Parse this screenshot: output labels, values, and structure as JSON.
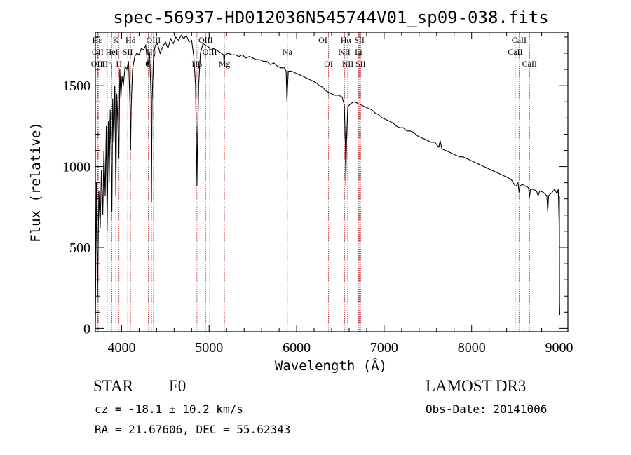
{
  "chart_data": {
    "type": "line",
    "title": "spec-56937-HD012036N545744V01_sp09-038.fits",
    "xlabel": "Wavelength (Å)",
    "ylabel": "Flux (relative)",
    "xlim": [
      3700,
      9100
    ],
    "ylim": [
      -20,
      1830
    ],
    "x_ticks": [
      4000,
      5000,
      6000,
      7000,
      8000,
      9000
    ],
    "y_ticks": [
      0,
      500,
      1000,
      1500
    ],
    "series": [
      {
        "name": "flux",
        "points": [
          [
            3700,
            30
          ],
          [
            3712,
            900
          ],
          [
            3725,
            200
          ],
          [
            3740,
            850
          ],
          [
            3755,
            620
          ],
          [
            3770,
            980
          ],
          [
            3785,
            700
          ],
          [
            3798,
            1100
          ],
          [
            3812,
            820
          ],
          [
            3825,
            1250
          ],
          [
            3835,
            600
          ],
          [
            3848,
            1280
          ],
          [
            3858,
            900
          ],
          [
            3870,
            1350
          ],
          [
            3880,
            1050
          ],
          [
            3889,
            720
          ],
          [
            3898,
            1420
          ],
          [
            3910,
            1150
          ],
          [
            3922,
            1500
          ],
          [
            3934,
            820
          ],
          [
            3945,
            1450
          ],
          [
            3958,
            1250
          ],
          [
            3968,
            1050
          ],
          [
            3980,
            1600
          ],
          [
            3992,
            1420
          ],
          [
            4005,
            1560
          ],
          [
            4020,
            1500
          ],
          [
            4040,
            1620
          ],
          [
            4060,
            1600
          ],
          [
            4080,
            1650
          ],
          [
            4095,
            1400
          ],
          [
            4102,
            1100
          ],
          [
            4110,
            1380
          ],
          [
            4125,
            1600
          ],
          [
            4150,
            1680
          ],
          [
            4175,
            1700
          ],
          [
            4200,
            1690
          ],
          [
            4225,
            1730
          ],
          [
            4250,
            1720
          ],
          [
            4275,
            1750
          ],
          [
            4300,
            1620
          ],
          [
            4320,
            1700
          ],
          [
            4335,
            1450
          ],
          [
            4341,
            780
          ],
          [
            4348,
            1400
          ],
          [
            4365,
            1690
          ],
          [
            4385,
            1750
          ],
          [
            4410,
            1760
          ],
          [
            4440,
            1700
          ],
          [
            4470,
            1740
          ],
          [
            4500,
            1770
          ],
          [
            4530,
            1730
          ],
          [
            4560,
            1790
          ],
          [
            4590,
            1760
          ],
          [
            4620,
            1800
          ],
          [
            4650,
            1780
          ],
          [
            4680,
            1810
          ],
          [
            4710,
            1790
          ],
          [
            4740,
            1810
          ],
          [
            4770,
            1770
          ],
          [
            4800,
            1780
          ],
          [
            4825,
            1680
          ],
          [
            4845,
            1500
          ],
          [
            4856,
            1100
          ],
          [
            4861,
            880
          ],
          [
            4866,
            1100
          ],
          [
            4880,
            1500
          ],
          [
            4900,
            1700
          ],
          [
            4930,
            1760
          ],
          [
            4960,
            1750
          ],
          [
            4990,
            1740
          ],
          [
            5020,
            1720
          ],
          [
            5050,
            1730
          ],
          [
            5080,
            1720
          ],
          [
            5110,
            1710
          ],
          [
            5140,
            1700
          ],
          [
            5165,
            1690
          ],
          [
            5172,
            1620
          ],
          [
            5180,
            1690
          ],
          [
            5220,
            1700
          ],
          [
            5260,
            1690
          ],
          [
            5300,
            1690
          ],
          [
            5340,
            1680
          ],
          [
            5380,
            1690
          ],
          [
            5420,
            1670
          ],
          [
            5460,
            1680
          ],
          [
            5500,
            1670
          ],
          [
            5540,
            1660
          ],
          [
            5580,
            1660
          ],
          [
            5620,
            1650
          ],
          [
            5660,
            1650
          ],
          [
            5700,
            1630
          ],
          [
            5740,
            1640
          ],
          [
            5780,
            1620
          ],
          [
            5820,
            1610
          ],
          [
            5860,
            1610
          ],
          [
            5880,
            1590
          ],
          [
            5890,
            1400
          ],
          [
            5896,
            1490
          ],
          [
            5905,
            1590
          ],
          [
            5940,
            1590
          ],
          [
            5980,
            1580
          ],
          [
            6020,
            1570
          ],
          [
            6060,
            1560
          ],
          [
            6100,
            1550
          ],
          [
            6140,
            1540
          ],
          [
            6180,
            1530
          ],
          [
            6220,
            1520
          ],
          [
            6260,
            1500
          ],
          [
            6300,
            1490
          ],
          [
            6330,
            1470
          ],
          [
            6360,
            1460
          ],
          [
            6400,
            1450
          ],
          [
            6440,
            1440
          ],
          [
            6480,
            1440
          ],
          [
            6520,
            1430
          ],
          [
            6545,
            1380
          ],
          [
            6556,
            1150
          ],
          [
            6563,
            880
          ],
          [
            6570,
            1150
          ],
          [
            6585,
            1370
          ],
          [
            6620,
            1390
          ],
          [
            6660,
            1400
          ],
          [
            6700,
            1390
          ],
          [
            6740,
            1380
          ],
          [
            6780,
            1370
          ],
          [
            6820,
            1360
          ],
          [
            6860,
            1350
          ],
          [
            6900,
            1330
          ],
          [
            6940,
            1320
          ],
          [
            6980,
            1300
          ],
          [
            7020,
            1290
          ],
          [
            7060,
            1280
          ],
          [
            7100,
            1270
          ],
          [
            7140,
            1250
          ],
          [
            7180,
            1240
          ],
          [
            7220,
            1240
          ],
          [
            7260,
            1220
          ],
          [
            7300,
            1220
          ],
          [
            7340,
            1210
          ],
          [
            7380,
            1190
          ],
          [
            7420,
            1180
          ],
          [
            7460,
            1170
          ],
          [
            7500,
            1160
          ],
          [
            7540,
            1150
          ],
          [
            7580,
            1150
          ],
          [
            7610,
            1130
          ],
          [
            7625,
            1120
          ],
          [
            7640,
            1160
          ],
          [
            7660,
            1110
          ],
          [
            7700,
            1100
          ],
          [
            7740,
            1090
          ],
          [
            7780,
            1080
          ],
          [
            7820,
            1070
          ],
          [
            7860,
            1060
          ],
          [
            7900,
            1060
          ],
          [
            7940,
            1050
          ],
          [
            7980,
            1040
          ],
          [
            8020,
            1030
          ],
          [
            8060,
            1020
          ],
          [
            8100,
            1010
          ],
          [
            8140,
            1000
          ],
          [
            8180,
            990
          ],
          [
            8220,
            980
          ],
          [
            8260,
            970
          ],
          [
            8300,
            960
          ],
          [
            8340,
            950
          ],
          [
            8380,
            940
          ],
          [
            8420,
            930
          ],
          [
            8460,
            915
          ],
          [
            8498,
            880
          ],
          [
            8510,
            880
          ],
          [
            8530,
            900
          ],
          [
            8542,
            840
          ],
          [
            8552,
            880
          ],
          [
            8580,
            890
          ],
          [
            8610,
            880
          ],
          [
            8650,
            870
          ],
          [
            8662,
            810
          ],
          [
            8672,
            860
          ],
          [
            8700,
            860
          ],
          [
            8740,
            850
          ],
          [
            8760,
            820
          ],
          [
            8780,
            850
          ],
          [
            8820,
            840
          ],
          [
            8860,
            820
          ],
          [
            8870,
            720
          ],
          [
            8880,
            820
          ],
          [
            8920,
            840
          ],
          [
            8950,
            860
          ],
          [
            8975,
            830
          ],
          [
            8990,
            860
          ],
          [
            9000,
            650
          ],
          [
            9003,
            820
          ],
          [
            9005,
            160
          ],
          [
            9008,
            80
          ]
        ]
      }
    ],
    "line_markers": [
      {
        "label": "Hε",
        "x": 3720,
        "row": 1
      },
      {
        "label": "OII",
        "x": 3727,
        "row": 2
      },
      {
        "label": "OIII",
        "x": 3733,
        "row": 3
      },
      {
        "label": "K",
        "x": 3934,
        "row": 1
      },
      {
        "label": "HeI",
        "x": 3889,
        "row": 2
      },
      {
        "label": "Hη",
        "x": 3835,
        "row": 3
      },
      {
        "label": "H",
        "x": 3970,
        "row": 3
      },
      {
        "label": "Hδ",
        "x": 4102,
        "row": 1
      },
      {
        "label": "SII",
        "x": 4070,
        "row": 2
      },
      {
        "label": "OIII",
        "x": 4364,
        "row": 1
      },
      {
        "label": "Hγ",
        "x": 4341,
        "row": 2
      },
      {
        "label": "G",
        "x": 4305,
        "row": 3
      },
      {
        "label": "Hβ",
        "x": 4861,
        "row": 3
      },
      {
        "label": "OIII",
        "x": 4960,
        "row": 1
      },
      {
        "label": "OIII",
        "x": 5007,
        "row": 2
      },
      {
        "label": "Mg",
        "x": 5175,
        "row": 3
      },
      {
        "label": "Na",
        "x": 5894,
        "row": 2
      },
      {
        "label": "OI",
        "x": 6300,
        "row": 1
      },
      {
        "label": "OI",
        "x": 6364,
        "row": 3
      },
      {
        "label": "Hα",
        "x": 6563,
        "row": 1
      },
      {
        "label": "NII",
        "x": 6548,
        "row": 2
      },
      {
        "label": "NII",
        "x": 6584,
        "row": 3
      },
      {
        "label": "SII",
        "x": 6717,
        "row": 1
      },
      {
        "label": "Li",
        "x": 6708,
        "row": 2
      },
      {
        "label": "SII",
        "x": 6731,
        "row": 3
      },
      {
        "label": "CaII",
        "x": 8542,
        "row": 1
      },
      {
        "label": "CaII",
        "x": 8498,
        "row": 2
      },
      {
        "label": "CaII",
        "x": 8662,
        "row": 3
      }
    ]
  },
  "info": {
    "object_class": "STAR",
    "subclass": "F0",
    "cz": "cz = -18.1 ± 10.2 km/s",
    "radec": "RA =  21.67606, DEC =  55.62343",
    "survey": "LAMOST DR3",
    "obs_date": "Obs-Date: 20141006"
  },
  "colors": {
    "axis": "#000000",
    "spectrum": "#000000",
    "marker_line": "#b22222"
  }
}
